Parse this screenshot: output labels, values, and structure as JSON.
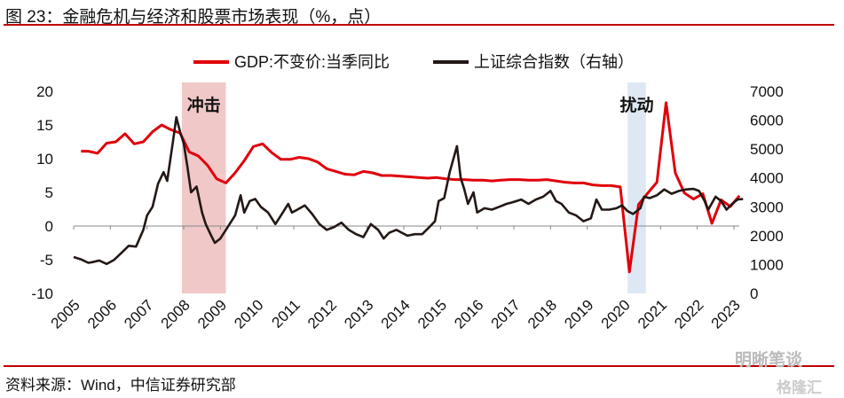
{
  "title": "图 23：金融危机与经济和股票市场表现（%，点）",
  "source": "资料来源：Wind，中信证券研究部",
  "watermarks": [
    "明晰笔谈",
    "格隆汇"
  ],
  "chart_data": {
    "type": "line",
    "title": "图 23：金融危机与经济和股票市场表现（%，点）",
    "legend": [
      "GDP:不变价:当季同比",
      "上证综合指数（右轴）"
    ],
    "legend_position": "top-center",
    "colors": {
      "gdp": "#e0000b",
      "sse": "#231815",
      "shock": "#f0c8c8",
      "disturb": "#dde8f4"
    },
    "ylim_left": [
      -10,
      20
    ],
    "yticks_left": [
      -10,
      -5,
      0,
      5,
      10,
      15,
      20
    ],
    "ylim_right": [
      0,
      7000
    ],
    "yticks_right": [
      0,
      1000,
      2000,
      3000,
      4000,
      5000,
      6000,
      7000
    ],
    "xlim": [
      2005,
      2023.3
    ],
    "xticks": [
      "2005",
      "2006",
      "2007",
      "2008",
      "2009",
      "2010",
      "2011",
      "2012",
      "2013",
      "2014",
      "2015",
      "2016",
      "2017",
      "2018",
      "2019",
      "2020",
      "2021",
      "2022",
      "2023"
    ],
    "annotations": [
      {
        "label": "冲击",
        "x_range": [
          2007.95,
          2009.15
        ]
      },
      {
        "label": "扰动",
        "x_range": [
          2020.1,
          2020.6
        ]
      }
    ],
    "series": [
      {
        "name": "GDP:不变价:当季同比",
        "axis": "left",
        "points": [
          [
            2005.2,
            11.1
          ],
          [
            2005.4,
            11.1
          ],
          [
            2005.65,
            10.8
          ],
          [
            2005.9,
            12.3
          ],
          [
            2006.15,
            12.5
          ],
          [
            2006.4,
            13.7
          ],
          [
            2006.65,
            12.2
          ],
          [
            2006.9,
            12.5
          ],
          [
            2007.15,
            14.0
          ],
          [
            2007.4,
            15.0
          ],
          [
            2007.65,
            14.3
          ],
          [
            2007.9,
            13.8
          ],
          [
            2008.15,
            11.0
          ],
          [
            2008.4,
            10.4
          ],
          [
            2008.65,
            9.0
          ],
          [
            2008.9,
            7.0
          ],
          [
            2009.15,
            6.4
          ],
          [
            2009.4,
            7.9
          ],
          [
            2009.65,
            9.7
          ],
          [
            2009.9,
            11.8
          ],
          [
            2010.15,
            12.2
          ],
          [
            2010.4,
            10.9
          ],
          [
            2010.65,
            9.9
          ],
          [
            2010.9,
            9.9
          ],
          [
            2011.15,
            10.2
          ],
          [
            2011.4,
            10.0
          ],
          [
            2011.65,
            9.5
          ],
          [
            2011.9,
            8.5
          ],
          [
            2012.15,
            8.1
          ],
          [
            2012.4,
            7.7
          ],
          [
            2012.65,
            7.6
          ],
          [
            2012.9,
            8.1
          ],
          [
            2013.15,
            7.9
          ],
          [
            2013.4,
            7.5
          ],
          [
            2013.65,
            7.5
          ],
          [
            2013.9,
            7.4
          ],
          [
            2014.15,
            7.3
          ],
          [
            2014.4,
            7.2
          ],
          [
            2014.65,
            7.1
          ],
          [
            2014.9,
            7.2
          ],
          [
            2015.15,
            7.0
          ],
          [
            2015.4,
            6.9
          ],
          [
            2015.65,
            6.9
          ],
          [
            2015.9,
            6.8
          ],
          [
            2016.15,
            6.8
          ],
          [
            2016.4,
            6.7
          ],
          [
            2016.65,
            6.8
          ],
          [
            2016.9,
            6.9
          ],
          [
            2017.15,
            6.9
          ],
          [
            2017.4,
            6.8
          ],
          [
            2017.65,
            6.8
          ],
          [
            2017.9,
            6.9
          ],
          [
            2018.15,
            6.7
          ],
          [
            2018.4,
            6.5
          ],
          [
            2018.65,
            6.4
          ],
          [
            2018.9,
            6.4
          ],
          [
            2019.15,
            6.1
          ],
          [
            2019.4,
            6.0
          ],
          [
            2019.65,
            6.0
          ],
          [
            2019.9,
            5.8
          ],
          [
            2020.15,
            -6.8
          ],
          [
            2020.4,
            3.2
          ],
          [
            2020.65,
            4.9
          ],
          [
            2020.9,
            6.5
          ],
          [
            2021.15,
            18.3
          ],
          [
            2021.4,
            7.9
          ],
          [
            2021.65,
            4.9
          ],
          [
            2021.9,
            4.0
          ],
          [
            2022.15,
            4.8
          ],
          [
            2022.4,
            0.4
          ],
          [
            2022.65,
            3.9
          ],
          [
            2022.9,
            2.9
          ],
          [
            2023.15,
            4.5
          ]
        ]
      },
      {
        "name": "上证综合指数（右轴）",
        "axis": "right",
        "points": [
          [
            2005.0,
            1260
          ],
          [
            2005.2,
            1180
          ],
          [
            2005.4,
            1060
          ],
          [
            2005.5,
            1080
          ],
          [
            2005.7,
            1140
          ],
          [
            2005.9,
            1020
          ],
          [
            2006.1,
            1160
          ],
          [
            2006.3,
            1400
          ],
          [
            2006.5,
            1650
          ],
          [
            2006.7,
            1620
          ],
          [
            2006.9,
            2200
          ],
          [
            2007.0,
            2700
          ],
          [
            2007.15,
            3000
          ],
          [
            2007.3,
            3800
          ],
          [
            2007.45,
            4200
          ],
          [
            2007.55,
            3900
          ],
          [
            2007.7,
            5200
          ],
          [
            2007.8,
            6100
          ],
          [
            2007.9,
            5600
          ],
          [
            2008.0,
            5200
          ],
          [
            2008.1,
            4400
          ],
          [
            2008.2,
            3500
          ],
          [
            2008.35,
            3700
          ],
          [
            2008.5,
            2800
          ],
          [
            2008.6,
            2400
          ],
          [
            2008.75,
            2000
          ],
          [
            2008.85,
            1750
          ],
          [
            2009.0,
            1900
          ],
          [
            2009.2,
            2300
          ],
          [
            2009.4,
            2700
          ],
          [
            2009.55,
            3400
          ],
          [
            2009.65,
            2800
          ],
          [
            2009.8,
            3200
          ],
          [
            2009.95,
            3270
          ],
          [
            2010.1,
            3000
          ],
          [
            2010.3,
            2800
          ],
          [
            2010.5,
            2400
          ],
          [
            2010.6,
            2600
          ],
          [
            2010.85,
            3100
          ],
          [
            2010.95,
            2800
          ],
          [
            2011.1,
            2900
          ],
          [
            2011.3,
            3050
          ],
          [
            2011.5,
            2750
          ],
          [
            2011.7,
            2400
          ],
          [
            2011.9,
            2200
          ],
          [
            2012.1,
            2300
          ],
          [
            2012.3,
            2450
          ],
          [
            2012.5,
            2200
          ],
          [
            2012.7,
            2050
          ],
          [
            2012.9,
            1950
          ],
          [
            2013.1,
            2400
          ],
          [
            2013.3,
            2200
          ],
          [
            2013.45,
            1900
          ],
          [
            2013.6,
            2100
          ],
          [
            2013.8,
            2200
          ],
          [
            2013.95,
            2100
          ],
          [
            2014.1,
            2000
          ],
          [
            2014.3,
            2050
          ],
          [
            2014.5,
            2050
          ],
          [
            2014.7,
            2300
          ],
          [
            2014.85,
            2500
          ],
          [
            2014.95,
            3200
          ],
          [
            2015.1,
            3300
          ],
          [
            2015.25,
            4200
          ],
          [
            2015.45,
            5100
          ],
          [
            2015.55,
            4000
          ],
          [
            2015.65,
            3600
          ],
          [
            2015.75,
            3100
          ],
          [
            2015.9,
            3500
          ],
          [
            2016.0,
            2800
          ],
          [
            2016.2,
            2950
          ],
          [
            2016.4,
            2900
          ],
          [
            2016.6,
            3000
          ],
          [
            2016.8,
            3100
          ],
          [
            2016.95,
            3150
          ],
          [
            2017.2,
            3250
          ],
          [
            2017.4,
            3100
          ],
          [
            2017.6,
            3250
          ],
          [
            2017.8,
            3350
          ],
          [
            2018.0,
            3550
          ],
          [
            2018.15,
            3200
          ],
          [
            2018.3,
            3100
          ],
          [
            2018.5,
            2800
          ],
          [
            2018.7,
            2700
          ],
          [
            2018.9,
            2500
          ],
          [
            2019.1,
            2600
          ],
          [
            2019.25,
            3250
          ],
          [
            2019.4,
            2900
          ],
          [
            2019.6,
            2900
          ],
          [
            2019.8,
            2950
          ],
          [
            2019.95,
            3050
          ],
          [
            2020.1,
            2850
          ],
          [
            2020.25,
            2750
          ],
          [
            2020.45,
            2950
          ],
          [
            2020.55,
            3350
          ],
          [
            2020.7,
            3300
          ],
          [
            2020.9,
            3400
          ],
          [
            2021.1,
            3600
          ],
          [
            2021.3,
            3450
          ],
          [
            2021.5,
            3550
          ],
          [
            2021.7,
            3600
          ],
          [
            2021.9,
            3620
          ],
          [
            2022.05,
            3550
          ],
          [
            2022.2,
            3200
          ],
          [
            2022.3,
            2900
          ],
          [
            2022.5,
            3350
          ],
          [
            2022.65,
            3200
          ],
          [
            2022.8,
            2900
          ],
          [
            2022.95,
            3100
          ],
          [
            2023.1,
            3250
          ],
          [
            2023.25,
            3270
          ]
        ]
      }
    ]
  }
}
